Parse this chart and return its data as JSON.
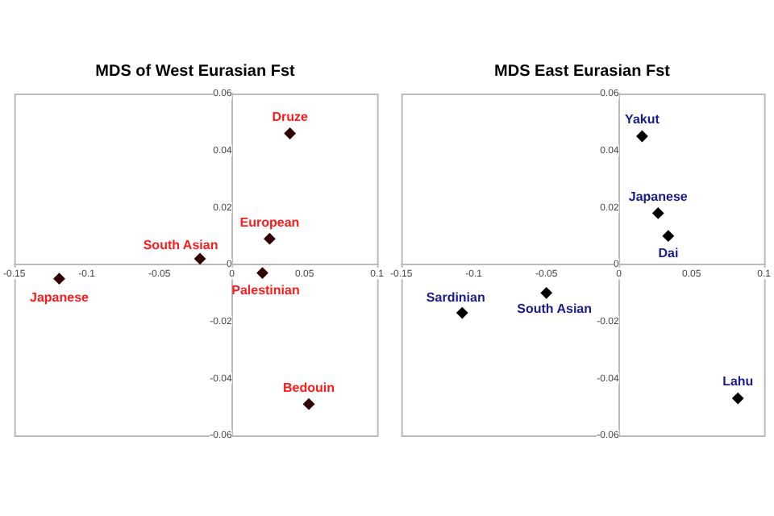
{
  "chart_data": [
    {
      "type": "scatter",
      "title": "MDS of West Eurasian Fst",
      "x": [
        0.04,
        0.026,
        -0.022,
        0.021,
        -0.119,
        0.053
      ],
      "values": [
        0.046,
        0.009,
        0.002,
        -0.003,
        -0.005,
        -0.049
      ],
      "color": "#330000",
      "marker": "diamond",
      "xlim": [
        -0.15,
        0.1
      ],
      "ylim": [
        -0.06,
        0.06
      ],
      "xticks": [
        -0.15,
        -0.1,
        -0.05,
        0,
        0.05,
        0.1
      ],
      "yticks": [
        -0.06,
        -0.04,
        -0.02,
        0,
        0.02,
        0.04,
        0.06
      ],
      "grid": false,
      "legend": false,
      "annotations": [
        {
          "text": "Druze",
          "x": 0.04,
          "y": 0.046
        },
        {
          "text": "European",
          "x": 0.026,
          "y": 0.009
        },
        {
          "text": "South Asian",
          "x": -0.022,
          "y": 0.002
        },
        {
          "text": "Palestinian",
          "x": 0.021,
          "y": -0.003
        },
        {
          "text": "Japanese",
          "x": -0.119,
          "y": -0.005
        },
        {
          "text": "Bedouin",
          "x": 0.053,
          "y": -0.049
        }
      ]
    },
    {
      "type": "scatter",
      "title": "MDS East Eurasian Fst",
      "x": [
        0.016,
        0.027,
        0.034,
        -0.05,
        -0.108,
        0.082
      ],
      "values": [
        0.045,
        0.018,
        0.01,
        -0.01,
        -0.017,
        -0.047
      ],
      "color": "#000000",
      "marker": "diamond",
      "xlim": [
        -0.15,
        0.1
      ],
      "ylim": [
        -0.06,
        0.06
      ],
      "xticks": [
        -0.15,
        -0.1,
        -0.05,
        0,
        0.05,
        0.1
      ],
      "yticks": [
        -0.06,
        -0.04,
        -0.02,
        0,
        0.02,
        0.04,
        0.06
      ],
      "grid": false,
      "legend": false,
      "annotations": [
        {
          "text": "Yakut",
          "x": 0.016,
          "y": 0.045
        },
        {
          "text": "Japanese",
          "x": 0.027,
          "y": 0.018
        },
        {
          "text": "Dai",
          "x": 0.034,
          "y": 0.01
        },
        {
          "text": "South Asian",
          "x": -0.05,
          "y": -0.01
        },
        {
          "text": "Sardinian",
          "x": -0.108,
          "y": -0.017
        },
        {
          "text": "Lahu",
          "x": 0.082,
          "y": -0.047
        }
      ]
    }
  ]
}
